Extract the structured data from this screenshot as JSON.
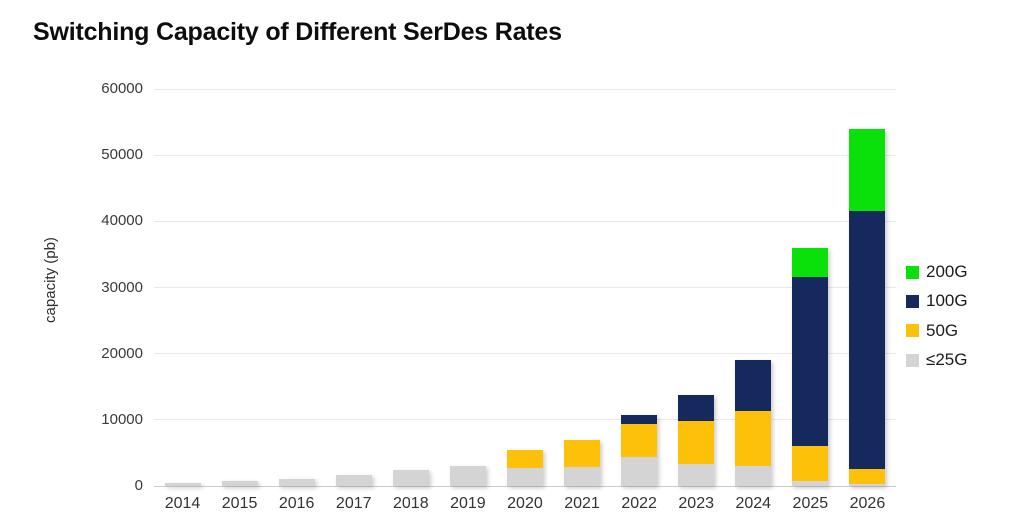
{
  "title": "Switching Capacity of Different SerDes Rates",
  "chart_data": {
    "type": "bar",
    "stacked": true,
    "title": "Switching Capacity of Different SerDes Rates",
    "xlabel": "",
    "ylabel": "capacity (pb)",
    "ylim": [
      0,
      60000
    ],
    "ytick_interval": 10000,
    "yticks": [
      "0",
      "10000",
      "20000",
      "30000",
      "40000",
      "50000",
      "60000"
    ],
    "grid": "horizontal-major",
    "legend_position": "right",
    "legend_order_top_to_bottom": [
      "200G",
      "100G",
      "50G",
      "≤25G"
    ],
    "categories": [
      "2014",
      "2015",
      "2016",
      "2017",
      "2018",
      "2019",
      "2020",
      "2021",
      "2022",
      "2023",
      "2024",
      "2025",
      "2026"
    ],
    "series": [
      {
        "name": "≤25G",
        "color": "#d4d4d4",
        "values": [
          400,
          800,
          1000,
          1700,
          2400,
          3000,
          2700,
          2900,
          4400,
          3300,
          3000,
          800,
          300
        ]
      },
      {
        "name": "50G",
        "color": "#fdc10a",
        "values": [
          0,
          0,
          0,
          0,
          0,
          0,
          2800,
          4100,
          5000,
          6600,
          8400,
          5200,
          2300
        ]
      },
      {
        "name": "100G",
        "color": "#16295e",
        "values": [
          0,
          0,
          0,
          0,
          0,
          0,
          0,
          0,
          1400,
          3900,
          7600,
          25600,
          39000
        ]
      },
      {
        "name": "200G",
        "color": "#0ae00a",
        "values": [
          0,
          0,
          0,
          0,
          0,
          0,
          0,
          0,
          0,
          0,
          0,
          4400,
          12400
        ]
      }
    ],
    "totals": [
      400,
      800,
      1000,
      1700,
      2400,
      3000,
      5500,
      7000,
      10800,
      13800,
      19000,
      36000,
      54000
    ]
  }
}
